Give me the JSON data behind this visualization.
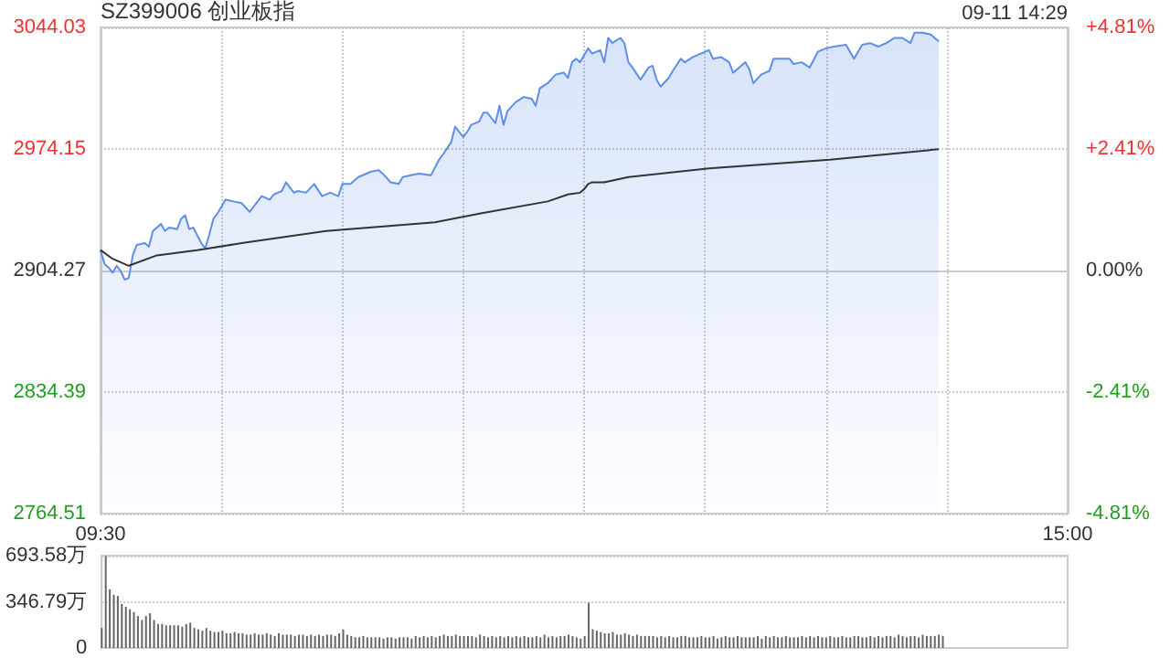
{
  "chart_data": [
    {
      "type": "area",
      "title": "SZ399006 创业板指",
      "annotations": [
        "09-11 14:29"
      ],
      "categories": [
        "09:30",
        null,
        null,
        null,
        null,
        null,
        null,
        null,
        null,
        null,
        null,
        null,
        null,
        null,
        null,
        null,
        null,
        null,
        null,
        null,
        null,
        null,
        null,
        null,
        null,
        null,
        null,
        null,
        null,
        null,
        null,
        null,
        null,
        null,
        null,
        null,
        null,
        null,
        null,
        null,
        null,
        null,
        null,
        null,
        null,
        null,
        null,
        null,
        null,
        null,
        null,
        null,
        null,
        null,
        null,
        null,
        null,
        null,
        null,
        null,
        null,
        null,
        null,
        null,
        null,
        null,
        null,
        null,
        null,
        null,
        null,
        null,
        null,
        null,
        null,
        null,
        null,
        null,
        null,
        null,
        null,
        null,
        null,
        null,
        null,
        null,
        null,
        null,
        null,
        null,
        null,
        null,
        null,
        null,
        null,
        null,
        null,
        null,
        null,
        null,
        null,
        null,
        null,
        null,
        null,
        null,
        null,
        null,
        null,
        null,
        null,
        null,
        null,
        null,
        null,
        null,
        null,
        null,
        null,
        null,
        null,
        null,
        null,
        null,
        null,
        null,
        null,
        null,
        null,
        null,
        null,
        null,
        null,
        null,
        null,
        null,
        null,
        null,
        null,
        null,
        null,
        null,
        null,
        null,
        null,
        null,
        null,
        null,
        null,
        null,
        null,
        null,
        null,
        null,
        null,
        null,
        null,
        null,
        null,
        null,
        null,
        null,
        null,
        null,
        null,
        null,
        null,
        null,
        null,
        null,
        null,
        null,
        null,
        null,
        null,
        null,
        null,
        null,
        null,
        null,
        null,
        null,
        null,
        null,
        null,
        null,
        null,
        null,
        null,
        null,
        null,
        null,
        null,
        null,
        null,
        null,
        null,
        null,
        null,
        null,
        null,
        null,
        null,
        null,
        null,
        null,
        null,
        null,
        null,
        null,
        null,
        null,
        null,
        null,
        null,
        null,
        null,
        null,
        null,
        null,
        null,
        null,
        null,
        null,
        null,
        null,
        null,
        null,
        null,
        null,
        null,
        null,
        null,
        null,
        null,
        null,
        null,
        null,
        null,
        null,
        "15:00"
      ],
      "series": [
        {
          "color": "#5e8ee8",
          "values": [
            2916,
            2908,
            2906,
            2903,
            2907,
            2904,
            2899,
            2900,
            2913,
            2919,
            null,
            2920,
            2918,
            2927,
            null,
            2931,
            2927,
            2929,
            null,
            2928,
            2934,
            2936,
            2928,
            2929,
            null,
            2920,
            2917,
            2925,
            2934,
            2937,
            null,
            2945,
            null,
            2944,
            null,
            2943,
            null,
            2938,
            null,
            2944,
            2947,
            null,
            2945,
            2948,
            null,
            2950,
            2955,
            null,
            2949,
            2950,
            null,
            2949,
            null,
            2954,
            null,
            2947,
            null,
            2949,
            null,
            2947,
            2954,
            null,
            2954,
            null,
            2958,
            null,
            null,
            2961,
            null,
            2962,
            2960,
            null,
            2955,
            null,
            2954,
            2958,
            null,
            2959,
            null,
            2960,
            null,
            null,
            2959,
            null,
            2968,
            2971,
            null,
            2978,
            2987,
            null,
            2981,
            2984,
            2988,
            null,
            2990,
            2995,
            2995,
            null,
            2989,
            2999,
            2988,
            2996,
            null,
            3001,
            null,
            3004,
            null,
            3003,
            2999,
            3009,
            null,
            3012,
            null,
            3017,
            null,
            3018,
            3015,
            3024,
            3026,
            3024,
            null,
            3032,
            3029,
            null,
            3031,
            3024,
            3038,
            3035,
            null,
            3038,
            3035,
            3024,
            3021,
            null,
            3014,
            null,
            3021,
            3022,
            3014,
            3010,
            null,
            3015,
            3019,
            null,
            3026,
            3024,
            null,
            3027,
            null,
            3029,
            null,
            3031,
            3026,
            null,
            3027,
            null,
            3024,
            3018,
            3020,
            null,
            3024,
            3020,
            3012,
            null,
            3017,
            null,
            3019,
            3026,
            null,
            null,
            null,
            3026,
            3023,
            null,
            3024,
            null,
            3021,
            null,
            3030,
            null,
            3032,
            null,
            3033,
            null,
            null,
            3034,
            3030,
            3026,
            null,
            3034,
            null,
            3035,
            null,
            3033,
            null,
            3035,
            null,
            3038,
            null,
            3038,
            null,
            3035,
            3041,
            null,
            3041,
            null,
            3040,
            null,
            3036,
            null,
            null,
            null,
            null,
            null,
            null,
            null,
            null,
            null,
            null,
            null,
            null,
            null,
            null,
            null,
            null,
            null,
            null,
            null,
            null,
            null,
            null,
            null,
            null,
            null,
            null,
            null,
            null,
            null,
            null,
            null,
            null
          ]
        },
        {
          "type": "line",
          "color": "#333333",
          "values": [
            2916,
            null,
            null,
            2911,
            null,
            null,
            null,
            2907,
            null,
            null,
            null,
            null,
            null,
            null,
            2913,
            null,
            null,
            null,
            null,
            null,
            null,
            null,
            null,
            null,
            2916,
            null,
            null,
            null,
            null,
            null,
            null,
            null,
            null,
            null,
            null,
            2920,
            null,
            null,
            null,
            null,
            null,
            null,
            null,
            null,
            null,
            null,
            null,
            null,
            null,
            null,
            null,
            null,
            null,
            null,
            null,
            null,
            2927,
            null,
            null,
            null,
            null,
            null,
            null,
            null,
            null,
            null,
            null,
            null,
            null,
            null,
            null,
            null,
            null,
            null,
            null,
            null,
            null,
            null,
            null,
            null,
            null,
            null,
            null,
            2932,
            null,
            null,
            null,
            null,
            null,
            null,
            null,
            null,
            null,
            null,
            2937,
            null,
            null,
            null,
            null,
            null,
            null,
            null,
            null,
            null,
            null,
            null,
            null,
            null,
            null,
            null,
            null,
            2944,
            null,
            null,
            null,
            null,
            2948,
            null,
            null,
            2949,
            2951,
            2954,
            2955,
            null,
            null,
            2955,
            null,
            null,
            null,
            null,
            null,
            2958,
            null,
            null,
            null,
            null,
            null,
            null,
            null,
            null,
            null,
            null,
            null,
            null,
            null,
            null,
            null,
            null,
            null,
            null,
            null,
            2963,
            null,
            null,
            null,
            null,
            null,
            null,
            null,
            null,
            null,
            null,
            null,
            null,
            null,
            null,
            null,
            null,
            null,
            null,
            null,
            null,
            null,
            null,
            null,
            null,
            null,
            null,
            null,
            null,
            null,
            2968,
            null,
            null,
            null,
            null,
            null,
            null,
            null,
            null,
            null,
            null,
            null,
            null,
            null,
            null,
            null,
            null,
            null,
            null,
            null,
            null,
            null,
            null,
            null,
            null,
            null,
            null,
            2974,
            null,
            null,
            null,
            null,
            null,
            null,
            null,
            null,
            null,
            null,
            null,
            null,
            null,
            null,
            null,
            null,
            null,
            null,
            null,
            null,
            null,
            null,
            null,
            null,
            null,
            null,
            null,
            null,
            null,
            null,
            null,
            null
          ]
        }
      ],
      "ylim": [
        2764.51,
        3044.03
      ],
      "yticks": [
        2764.51,
        2834.39,
        2904.27,
        2974.15,
        3044.03
      ],
      "y2lim": [
        -4.81,
        4.81
      ],
      "y2ticks": [
        {
          "value": -4.81,
          "label": "-4.81%"
        },
        {
          "value": -2.41,
          "label": "-2.41%"
        },
        {
          "value": 0,
          "label": "0.00%"
        },
        {
          "value": 2.41,
          "label": "+2.41%"
        },
        {
          "value": 4.81,
          "label": "+4.81%"
        }
      ],
      "grid": true,
      "marker": "none"
    },
    {
      "type": "bar",
      "color": "#666666",
      "categories": [
        null,
        null,
        null,
        null,
        null,
        null,
        null,
        null,
        null,
        null,
        null,
        null,
        null,
        null,
        null,
        null,
        null,
        null,
        null,
        null,
        null,
        null,
        null,
        null,
        null,
        null,
        null,
        null,
        null,
        null,
        null,
        null,
        null,
        null,
        null,
        null,
        null,
        null,
        null,
        null,
        null,
        null,
        null,
        null,
        null,
        null,
        null,
        null,
        null,
        null,
        null,
        null,
        null,
        null,
        null,
        null,
        null,
        null,
        null,
        null,
        null,
        null,
        null,
        null,
        null,
        null,
        null,
        null,
        null,
        null,
        null,
        null,
        null,
        null,
        null,
        null,
        null,
        null,
        null,
        null,
        null,
        null,
        null,
        null,
        null,
        null,
        null,
        null,
        null,
        null,
        null,
        null,
        null,
        null,
        null,
        null,
        null,
        null,
        null,
        null,
        null,
        null,
        null,
        null,
        null,
        null,
        null,
        null,
        null,
        null,
        null,
        null,
        null,
        null,
        null,
        null,
        null,
        null,
        null,
        null,
        null,
        null,
        null,
        null,
        null,
        null,
        null,
        null,
        null,
        null,
        null,
        null,
        null,
        null,
        null,
        null,
        null,
        null,
        null,
        null,
        null,
        null,
        null,
        null,
        null,
        null,
        null,
        null,
        null,
        null,
        null,
        null,
        null,
        null,
        null,
        null,
        null,
        null,
        null,
        null,
        null,
        null,
        null,
        null,
        null,
        null,
        null,
        null,
        null,
        null,
        null,
        null,
        null,
        null,
        null,
        null,
        null,
        null,
        null,
        null,
        null,
        null,
        null,
        null,
        null,
        null,
        null,
        null,
        null,
        null,
        null,
        null,
        null,
        null,
        null,
        null,
        null,
        null,
        null,
        null,
        null,
        null,
        null,
        null,
        null,
        null,
        null,
        null,
        null,
        null,
        null,
        null,
        null,
        null,
        null,
        null,
        null,
        null,
        null,
        null,
        null,
        null,
        null,
        null,
        null,
        null,
        null,
        null,
        null,
        null,
        null,
        null,
        null,
        null,
        null,
        null,
        null,
        null,
        null,
        null,
        null
      ],
      "values": [
        150,
        690,
        440,
        400,
        390,
        330,
        310,
        290,
        270,
        240,
        210,
        240,
        260,
        210,
        180,
        180,
        170,
        170,
        170,
        170,
        160,
        180,
        190,
        150,
        140,
        130,
        150,
        130,
        120,
        120,
        130,
        110,
        110,
        120,
        110,
        110,
        100,
        100,
        110,
        100,
        100,
        110,
        100,
        90,
        110,
        100,
        100,
        100,
        90,
        100,
        100,
        90,
        100,
        90,
        100,
        90,
        100,
        100,
        90,
        110,
        140,
        100,
        90,
        80,
        80,
        90,
        80,
        80,
        80,
        80,
        70,
        80,
        80,
        70,
        80,
        80,
        80,
        70,
        90,
        80,
        90,
        80,
        90,
        80,
        90,
        100,
        90,
        90,
        100,
        90,
        90,
        90,
        90,
        80,
        100,
        90,
        80,
        90,
        80,
        90,
        80,
        90,
        80,
        90,
        80,
        90,
        80,
        80,
        90,
        80,
        100,
        80,
        90,
        80,
        90,
        90,
        100,
        90,
        80,
        70,
        90,
        340,
        140,
        130,
        120,
        110,
        110,
        120,
        100,
        100,
        110,
        100,
        90,
        100,
        90,
        90,
        90,
        90,
        80,
        90,
        80,
        90,
        80,
        80,
        90,
        90,
        80,
        80,
        80,
        90,
        80,
        80,
        90,
        70,
        80,
        90,
        80,
        80,
        90,
        80,
        80,
        80,
        80,
        90,
        70,
        90,
        80,
        90,
        80,
        80,
        90,
        80,
        80,
        80,
        90,
        80,
        90,
        80,
        90,
        80,
        80,
        90,
        80,
        80,
        90,
        80,
        80,
        90,
        90,
        80,
        80,
        90,
        80,
        90,
        80,
        90,
        90,
        80,
        100,
        90,
        80,
        90,
        90,
        80,
        100,
        90,
        90,
        90,
        100,
        90,
        null,
        null,
        null,
        null,
        null,
        null,
        null,
        null,
        null,
        null,
        null,
        null,
        null,
        null,
        null,
        null,
        null,
        null,
        null,
        null,
        null,
        null,
        null,
        null,
        null,
        null,
        null,
        null,
        null,
        null,
        null
      ],
      "ylim": [
        0,
        693.58
      ],
      "yticks": [
        0,
        {
          "value": 346.79,
          "label": "346.79万"
        },
        {
          "value": 693.58,
          "label": "693.58万"
        }
      ],
      "tick_labels": "y",
      "grid": "y"
    }
  ]
}
